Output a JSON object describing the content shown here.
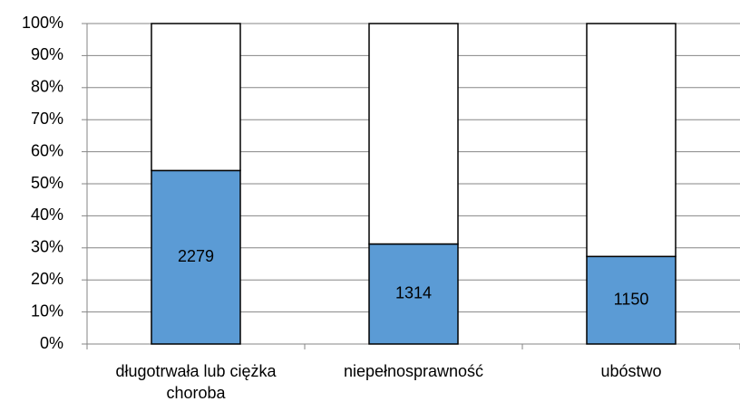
{
  "chart_data": {
    "type": "bar",
    "stacking": "percent",
    "categories": [
      "długotrwała lub ciężka choroba",
      "niepełnosprawność",
      "ubóstwo"
    ],
    "series": [
      {
        "color": "#5b9bd5",
        "values": [
          2279,
          1314,
          1150
        ],
        "show_labels": true
      },
      {
        "color": "#ffffff",
        "values": [
          1931,
          2896,
          3060
        ],
        "show_labels": false
      }
    ],
    "ylim": [
      0,
      100
    ],
    "yticks": [
      {
        "value": 0,
        "label": "0%"
      },
      {
        "value": 10,
        "label": "10%"
      },
      {
        "value": 20,
        "label": "20%"
      },
      {
        "value": 30,
        "label": "30%"
      },
      {
        "value": 40,
        "label": "40%"
      },
      {
        "value": 50,
        "label": "50%"
      },
      {
        "value": 60,
        "label": "60%"
      },
      {
        "value": 70,
        "label": "70%"
      },
      {
        "value": 80,
        "label": "80%"
      },
      {
        "value": 90,
        "label": "90%"
      },
      {
        "value": 100,
        "label": "100%"
      }
    ],
    "grid": true
  }
}
